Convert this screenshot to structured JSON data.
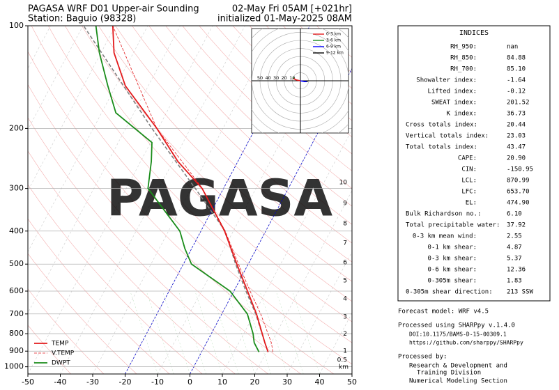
{
  "chart_data": {
    "type": "skewt",
    "title_left": [
      "PAGASA WRF D01 Upper-air Sounding",
      "Station: Baguio (98328)"
    ],
    "title_right": [
      "02-May Fri 05AM [+021hr]",
      "initialized 01-May-2025 08AM"
    ],
    "watermark": "PAGASA",
    "xlim": [
      -50,
      50
    ],
    "xticks": [
      -50,
      -40,
      -30,
      -20,
      -10,
      0,
      10,
      20,
      30,
      40,
      50
    ],
    "ylim": [
      1050,
      100
    ],
    "yticks": [
      1000,
      900,
      800,
      700,
      600,
      500,
      400,
      300,
      200,
      100
    ],
    "log_y": true,
    "grid": true,
    "legend": "lower left",
    "highlight_isotherms": [
      -20,
      0
    ],
    "highlight_color": "#0000cc",
    "series": [
      {
        "name": "TEMP",
        "color": "#e31a1c",
        "dash": false,
        "pressure": [
          905,
          850,
          700,
          600,
          500,
          400,
          300,
          250,
          200,
          150,
          120,
          100
        ],
        "values": [
          20.5,
          18,
          10.7,
          4.2,
          -3.5,
          -12.7,
          -26.6,
          -38.5,
          -50.4,
          -67.1,
          -76,
          -80.8
        ]
      },
      {
        "name": "V.TEMP",
        "color": "#e31a1c",
        "dash": true,
        "pressure": [
          905,
          850,
          700,
          600,
          500,
          400,
          300,
          200,
          100
        ],
        "values": [
          22,
          20,
          12,
          5,
          -3,
          -12.5,
          -26.5,
          -50.4,
          -80.8
        ]
      },
      {
        "name": "DWPT",
        "color": "#1a8c1a",
        "dash": false,
        "pressure": [
          905,
          850,
          800,
          700,
          600,
          500,
          450,
          400,
          300,
          250,
          220,
          180,
          150,
          120,
          100
        ],
        "values": [
          17.7,
          14.7,
          12.9,
          7.9,
          -1.2,
          -17.5,
          -22.1,
          -26.5,
          -43.3,
          -46.7,
          -49.6,
          -65.6,
          -72.5,
          -80.5,
          -86
        ]
      }
    ],
    "parcel": {
      "color": "#808080",
      "pressure": [
        905,
        850,
        700,
        600,
        500,
        400,
        300,
        200,
        100
      ],
      "values": [
        20.5,
        18,
        10.5,
        3.7,
        -3.9,
        -12.5,
        -28.7,
        -51.9,
        -89.8
      ]
    },
    "height_label_unit": "km",
    "height_labels": [
      "0.5",
      "1",
      "2",
      "3",
      "4",
      "5",
      "6",
      "7",
      "8",
      "9",
      "10"
    ],
    "height_pressures": [
      955,
      899,
      802,
      714,
      632,
      559,
      495,
      434,
      380,
      332,
      288
    ],
    "hodograph": {
      "ring_ticks": [
        50,
        40,
        30,
        20,
        10
      ],
      "series": [
        {
          "name": "0-3 km",
          "color": "#e31a1c",
          "u": [
            0,
            -5,
            -9
          ],
          "v": [
            0,
            1,
            3
          ]
        },
        {
          "name": "3-6 km",
          "color": "#1a8c1a",
          "u": [
            -9,
            -8
          ],
          "v": [
            3,
            4
          ]
        },
        {
          "name": "6-9 km",
          "color": "#0000ff",
          "u": [
            0,
            5,
            8
          ],
          "v": [
            0,
            -1,
            -1
          ]
        },
        {
          "name": "9-12 km",
          "color": "#000000",
          "u": [
            8,
            9
          ],
          "v": [
            -1,
            0
          ]
        }
      ]
    }
  },
  "indices": {
    "title": "INDICES",
    "rows": [
      [
        "RH_950:",
        "nan"
      ],
      [
        "RH_850:",
        "84.88"
      ],
      [
        "RH_700:",
        "85.10"
      ],
      [
        "Showalter index:",
        "-1.64"
      ],
      [
        "Lifted index:",
        "-0.12"
      ],
      [
        "SWEAT index:",
        "201.52"
      ],
      [
        "K index:",
        "36.73"
      ],
      [
        "Cross totals index:",
        "20.44"
      ],
      [
        "Vertical totals index:",
        "23.03"
      ],
      [
        "Total totals index:",
        "43.47"
      ],
      [
        "CAPE:",
        "20.90"
      ],
      [
        "CIN:",
        "-150.95"
      ],
      [
        "LCL:",
        "870.99"
      ],
      [
        "LFC:",
        "653.70"
      ],
      [
        "EL:",
        "474.90"
      ],
      [
        "Bulk Richardson no.:",
        "6.10"
      ],
      [
        "Total precipitable water:",
        "37.92"
      ],
      [
        "0-3 km mean wind:",
        "2.55"
      ],
      [
        "0-1 km shear:",
        "4.87"
      ],
      [
        "0-3 km shear:",
        "5.37"
      ],
      [
        "0-6 km shear:",
        "12.36"
      ],
      [
        "0-305m shear:",
        "1.83"
      ],
      [
        "0-305m shear direction:",
        "213 SSW"
      ]
    ]
  },
  "footer": {
    "model": "Forecast model: WRF v4.5",
    "processed": "Processed using SHARPpy v.1.4.0",
    "doi": "DOI:10.1175/BAMS-D-15-00309.1",
    "url": "https://github.com/sharppy/SHARPpy",
    "by": "Processed by:",
    "org": [
      "Research & Development and",
      "Training Division",
      "Numerical Modeling Section"
    ]
  }
}
